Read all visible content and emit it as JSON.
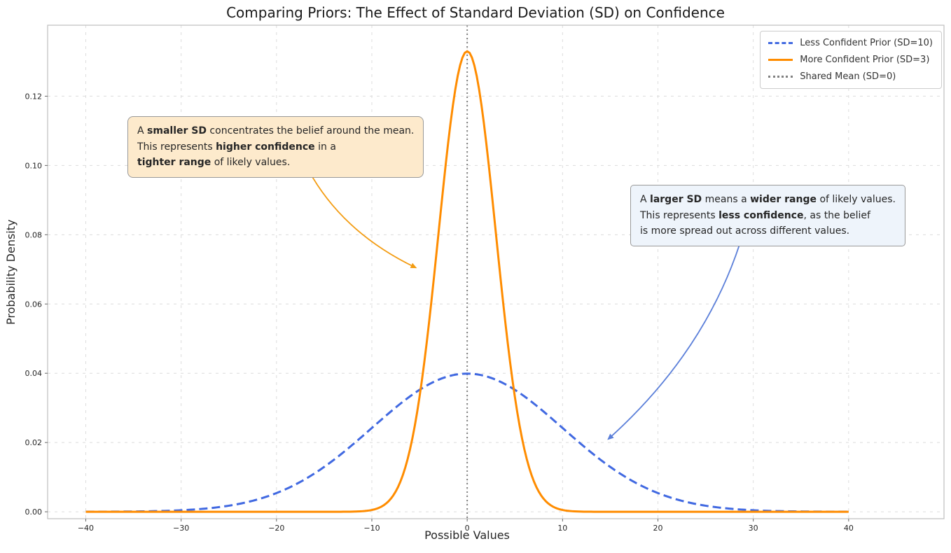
{
  "title": "Comparing Priors: The Effect of Standard Deviation (SD) on Confidence",
  "chart_data": {
    "type": "line",
    "title": "Comparing Priors: The Effect of Standard Deviation (SD) on Confidence",
    "xlabel": "Possible Values",
    "ylabel": "Probability Density",
    "xlim": [
      -44,
      50
    ],
    "ylim": [
      -0.002,
      0.1405
    ],
    "x_ticks": [
      -40,
      -30,
      -20,
      -10,
      0,
      10,
      20,
      30,
      40
    ],
    "x_tick_labels": [
      "−40",
      "−30",
      "−20",
      "−10",
      "0",
      "10",
      "20",
      "30",
      "40"
    ],
    "y_ticks": [
      0.0,
      0.02,
      0.04,
      0.06,
      0.08,
      0.1,
      0.12
    ],
    "y_tick_labels": [
      "0.00",
      "0.02",
      "0.04",
      "0.06",
      "0.08",
      "0.10",
      "0.12"
    ],
    "grid": true,
    "legend_position": "upper right",
    "mean_line": {
      "x": 0,
      "color": "#808080",
      "style": "dotted",
      "label": "Shared Mean (SD=0)"
    },
    "series": [
      {
        "name": "Less Confident Prior (SD=10)",
        "distribution": "normal",
        "mean": 0,
        "sd": 10,
        "peak_density": 0.03989,
        "color": "#4169e1",
        "line_style": "dashed",
        "x_range": [
          -40,
          40
        ]
      },
      {
        "name": "More Confident Prior (SD=3)",
        "distribution": "normal",
        "mean": 0,
        "sd": 3,
        "peak_density": 0.13298,
        "color": "#ff8c00",
        "line_style": "solid",
        "x_range": [
          -40,
          40
        ]
      }
    ],
    "sample_points": {
      "x": [
        -40,
        -35,
        -30,
        -25,
        -20,
        -15,
        -10,
        -5,
        0,
        5,
        10,
        15,
        20,
        25,
        30,
        35,
        40
      ],
      "sd10_pdf": [
        1e-05,
        9e-05,
        0.00044,
        0.00175,
        0.0054,
        0.01295,
        0.0242,
        0.03521,
        0.03989,
        0.03521,
        0.0242,
        0.01295,
        0.0054,
        0.00175,
        0.00044,
        9e-05,
        1e-05
      ],
      "sd3_pdf": [
        0,
        0,
        0,
        0,
        0,
        0,
        0.00051,
        0.03316,
        0.13298,
        0.03316,
        0.00051,
        0,
        0,
        0,
        0,
        0,
        0
      ]
    },
    "annotations": [
      {
        "id": "smaller-sd",
        "xy": [
          -5.4,
          0.0705
        ],
        "xytext": [
          -16.2,
          0.0965
        ],
        "ctrl": [
          -12.6,
          0.08
        ],
        "arrow_color": "#f39c12"
      },
      {
        "id": "larger-sd",
        "xy": [
          14.8,
          0.021
        ],
        "xytext": [
          28.6,
          0.0775
        ],
        "ctrl": [
          24.8,
          0.0457
        ],
        "arrow_color": "#5b7fd9"
      }
    ]
  },
  "legend": {
    "items": [
      {
        "label": "Less Confident Prior (SD=10)",
        "color": "#4169e1",
        "style": "dashed"
      },
      {
        "label": "More Confident Prior (SD=3)",
        "color": "#ff8c00",
        "style": "solid"
      },
      {
        "label": "Shared Mean (SD=0)",
        "color": "#808080",
        "style": "dotted"
      }
    ]
  },
  "annotations": {
    "smaller_sd": {
      "box_color": "#fdeacc",
      "lines": [
        [
          {
            "text": "A ",
            "bold": false
          },
          {
            "text": "smaller SD",
            "bold": true
          },
          {
            "text": " concentrates the belief around the mean.",
            "bold": false
          }
        ],
        [
          {
            "text": "This represents ",
            "bold": false
          },
          {
            "text": "higher confidence",
            "bold": true
          },
          {
            "text": " in a",
            "bold": false
          }
        ],
        [
          {
            "text": "tighter range",
            "bold": true
          },
          {
            "text": " of likely values.",
            "bold": false
          }
        ]
      ]
    },
    "larger_sd": {
      "box_color": "#eef4fb",
      "lines": [
        [
          {
            "text": "A ",
            "bold": false
          },
          {
            "text": "larger SD",
            "bold": true
          },
          {
            "text": " means a ",
            "bold": false
          },
          {
            "text": "wider range",
            "bold": true
          },
          {
            "text": " of likely values.",
            "bold": false
          }
        ],
        [
          {
            "text": "This represents ",
            "bold": false
          },
          {
            "text": "less confidence",
            "bold": true
          },
          {
            "text": ", as the belief",
            "bold": false
          }
        ],
        [
          {
            "text": "is more spread out across different values.",
            "bold": false
          }
        ]
      ]
    }
  }
}
